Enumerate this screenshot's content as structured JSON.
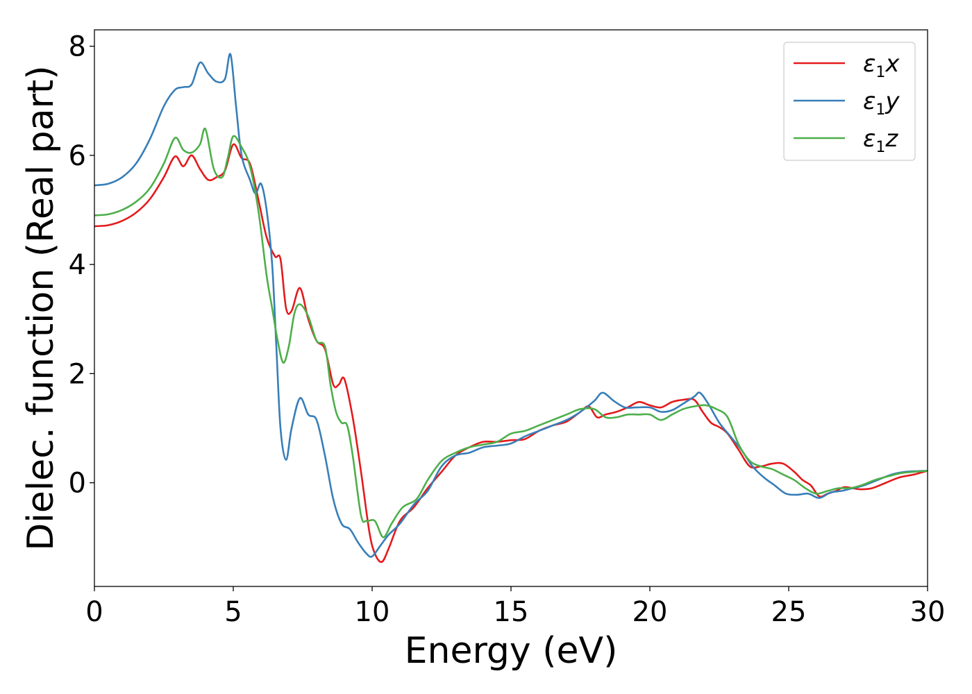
{
  "chart_data": {
    "type": "line",
    "xlabel": "Energy (eV)",
    "ylabel": "Dielec. function (Real part)",
    "xlim": [
      0,
      30
    ],
    "ylim": [
      -1.9,
      8.3
    ],
    "xticks": [
      0,
      5,
      10,
      15,
      20,
      25,
      30
    ],
    "yticks": [
      0,
      2,
      4,
      6,
      8
    ],
    "xtick_labels": [
      "0",
      "5",
      "10",
      "15",
      "20",
      "25",
      "30"
    ],
    "ytick_labels": [
      "0",
      "2",
      "4",
      "6",
      "8"
    ],
    "grid": false,
    "legend": "top-right",
    "series": [
      {
        "name": "ε1x",
        "legend_main": "ε",
        "legend_sub": "1",
        "legend_tail": "x",
        "color": "#e41a1c",
        "x": [
          0,
          0.5,
          1,
          1.5,
          2,
          2.5,
          2.9,
          3.2,
          3.5,
          3.8,
          4.1,
          4.4,
          4.7,
          5.0,
          5.3,
          5.6,
          5.9,
          6.2,
          6.5,
          6.7,
          6.9,
          7.1,
          7.4,
          7.7,
          8.0,
          8.3,
          8.6,
          8.8,
          9.0,
          9.3,
          9.6,
          9.9,
          10.1,
          10.35,
          10.6,
          11.0,
          11.5,
          12.0,
          12.5,
          13.0,
          13.5,
          14.0,
          14.5,
          15.0,
          15.5,
          16.0,
          16.5,
          17.0,
          17.5,
          17.8,
          18.1,
          18.4,
          18.8,
          19.2,
          19.6,
          20.0,
          20.4,
          20.8,
          21.2,
          21.6,
          21.9,
          22.2,
          22.5,
          22.8,
          23.2,
          23.6,
          24.0,
          24.4,
          24.8,
          25.2,
          25.5,
          25.8,
          26.1,
          26.4,
          26.7,
          27.0,
          27.3,
          27.6,
          28.0,
          28.5,
          29.0,
          29.5,
          30.0
        ],
        "y": [
          4.7,
          4.72,
          4.8,
          4.95,
          5.2,
          5.6,
          5.98,
          5.8,
          6.0,
          5.75,
          5.55,
          5.6,
          5.72,
          6.2,
          5.95,
          5.85,
          5.2,
          4.5,
          4.15,
          4.1,
          3.2,
          3.15,
          3.57,
          3.0,
          2.6,
          2.45,
          1.8,
          1.8,
          1.9,
          1.2,
          0.2,
          -0.9,
          -1.3,
          -1.45,
          -1.2,
          -0.7,
          -0.45,
          -0.1,
          0.2,
          0.5,
          0.65,
          0.75,
          0.75,
          0.78,
          0.8,
          0.95,
          1.05,
          1.12,
          1.3,
          1.4,
          1.2,
          1.25,
          1.3,
          1.38,
          1.48,
          1.42,
          1.38,
          1.48,
          1.52,
          1.52,
          1.3,
          1.1,
          1.02,
          0.9,
          0.6,
          0.3,
          0.3,
          0.35,
          0.35,
          0.2,
          0.05,
          -0.05,
          -0.25,
          -0.2,
          -0.15,
          -0.08,
          -0.1,
          -0.12,
          -0.1,
          0.0,
          0.1,
          0.15,
          0.22
        ]
      },
      {
        "name": "ε1y",
        "legend_main": "ε",
        "legend_sub": "1",
        "legend_tail": "y",
        "color": "#377eb8",
        "x": [
          0,
          0.5,
          1,
          1.5,
          2,
          2.5,
          2.9,
          3.2,
          3.5,
          3.8,
          4.1,
          4.4,
          4.7,
          4.9,
          5.1,
          5.3,
          5.6,
          5.8,
          6.0,
          6.2,
          6.4,
          6.55,
          6.7,
          6.9,
          7.1,
          7.4,
          7.7,
          8.0,
          8.3,
          8.6,
          8.9,
          9.2,
          9.5,
          9.8,
          10.0,
          10.3,
          10.6,
          11.0,
          11.5,
          12.0,
          12.5,
          13.0,
          13.5,
          14.0,
          14.5,
          15.0,
          15.5,
          16.0,
          16.5,
          17.0,
          17.5,
          18.0,
          18.3,
          18.7,
          19.1,
          19.5,
          20.0,
          20.4,
          20.8,
          21.2,
          21.6,
          21.8,
          22.1,
          22.5,
          22.9,
          23.3,
          23.7,
          24.1,
          24.5,
          24.9,
          25.3,
          25.7,
          26.1,
          26.5,
          26.9,
          27.3,
          27.7,
          28.2,
          28.7,
          29.2,
          30.0
        ],
        "y": [
          5.45,
          5.48,
          5.6,
          5.85,
          6.3,
          6.9,
          7.2,
          7.25,
          7.3,
          7.7,
          7.5,
          7.35,
          7.4,
          7.85,
          6.9,
          6.0,
          5.55,
          5.3,
          5.48,
          5.0,
          4.0,
          2.5,
          1.0,
          0.42,
          1.0,
          1.55,
          1.25,
          1.15,
          0.5,
          -0.3,
          -0.75,
          -0.85,
          -1.1,
          -1.3,
          -1.35,
          -1.15,
          -0.95,
          -0.75,
          -0.4,
          -0.15,
          0.3,
          0.5,
          0.55,
          0.65,
          0.68,
          0.72,
          0.85,
          0.95,
          1.05,
          1.15,
          1.3,
          1.5,
          1.65,
          1.5,
          1.38,
          1.38,
          1.38,
          1.3,
          1.33,
          1.45,
          1.58,
          1.65,
          1.45,
          1.1,
          0.85,
          0.6,
          0.3,
          0.1,
          -0.05,
          -0.2,
          -0.22,
          -0.2,
          -0.28,
          -0.18,
          -0.15,
          -0.1,
          -0.05,
          0.05,
          0.15,
          0.2,
          0.22
        ]
      },
      {
        "name": "ε1z",
        "legend_main": "ε",
        "legend_sub": "1",
        "legend_tail": "z",
        "color": "#4daf4a",
        "x": [
          0,
          0.5,
          1,
          1.5,
          2,
          2.5,
          2.9,
          3.2,
          3.5,
          3.8,
          4.0,
          4.3,
          4.6,
          4.8,
          5.0,
          5.3,
          5.6,
          5.9,
          6.2,
          6.4,
          6.6,
          6.8,
          7.0,
          7.2,
          7.4,
          7.7,
          8.0,
          8.3,
          8.5,
          8.7,
          8.9,
          9.1,
          9.3,
          9.6,
          9.8,
          10.1,
          10.4,
          10.7,
          11.1,
          11.6,
          12.0,
          12.5,
          13.0,
          13.5,
          14.0,
          14.5,
          15.0,
          15.5,
          16.0,
          16.5,
          17.0,
          17.5,
          18.0,
          18.4,
          18.8,
          19.2,
          19.6,
          20.0,
          20.4,
          20.8,
          21.2,
          21.6,
          22.0,
          22.4,
          22.8,
          23.2,
          23.6,
          24.0,
          24.4,
          24.8,
          25.2,
          25.6,
          26.0,
          26.4,
          26.8,
          27.2,
          27.6,
          28.1,
          28.6,
          29.1,
          30.0
        ],
        "y": [
          4.9,
          4.92,
          5.0,
          5.15,
          5.4,
          5.85,
          6.32,
          6.1,
          6.05,
          6.2,
          6.48,
          5.75,
          5.6,
          5.95,
          6.35,
          6.15,
          5.8,
          5.0,
          3.8,
          3.2,
          2.6,
          2.2,
          2.5,
          3.1,
          3.27,
          3.05,
          2.6,
          2.5,
          1.8,
          1.3,
          1.1,
          1.05,
          0.5,
          -0.6,
          -0.7,
          -0.7,
          -1.0,
          -0.75,
          -0.45,
          -0.3,
          0.05,
          0.4,
          0.55,
          0.65,
          0.7,
          0.75,
          0.9,
          0.95,
          1.05,
          1.15,
          1.25,
          1.35,
          1.35,
          1.2,
          1.2,
          1.25,
          1.25,
          1.25,
          1.15,
          1.25,
          1.35,
          1.4,
          1.42,
          1.35,
          1.2,
          0.7,
          0.4,
          0.3,
          0.25,
          0.15,
          0.05,
          -0.1,
          -0.2,
          -0.15,
          -0.1,
          -0.1,
          -0.05,
          0.05,
          0.12,
          0.18,
          0.22
        ]
      }
    ]
  }
}
